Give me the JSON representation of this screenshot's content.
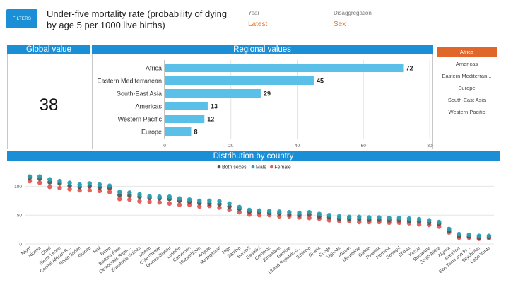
{
  "header": {
    "filters_label": "FILTERS",
    "title": "Under-five mortality rate (probability of dying by age 5 per 1000 live births)",
    "year_label": "Year",
    "year_value": "Latest",
    "disagg_label": "Disaggregation",
    "disagg_value": "Sex"
  },
  "global": {
    "heading": "Global value",
    "value": "38"
  },
  "regional": {
    "heading": "Regional values"
  },
  "region_list": {
    "items": [
      "Africa",
      "Americas",
      "Eastern Mediterran...",
      "Europe",
      "South-East Asia",
      "Western Pacific"
    ],
    "selected": "Africa"
  },
  "distribution": {
    "heading": "Distribution by country"
  },
  "colors": {
    "accent": "#1a8fd6",
    "bar": "#5bc0e8",
    "both": "#555555",
    "male": "#2a9db0",
    "female": "#e05a55",
    "selected": "#e0662a"
  },
  "chart_data": [
    {
      "type": "bar",
      "orientation": "horizontal",
      "categories": [
        "Africa",
        "Eastern Mediterranean",
        "South-East Asia",
        "Americas",
        "Western Pacific",
        "Europe"
      ],
      "values": [
        72,
        45,
        29,
        13,
        12,
        8
      ],
      "xlim": [
        0,
        80
      ],
      "xticks": [
        0,
        20,
        40,
        60,
        80
      ],
      "grid": true
    },
    {
      "type": "scatter",
      "legend": {
        "position": "top-center",
        "entries": [
          "Both sexes",
          "Male",
          "Female"
        ]
      },
      "ylim": [
        0,
        125
      ],
      "yticks": [
        0,
        50,
        100
      ],
      "grid": true,
      "categories": [
        "Niger",
        "Nigeria",
        "Chad",
        "Sierra Leone",
        "Central African R...",
        "South Sudan",
        "Guinea",
        "Mali",
        "Benin",
        "Burkina Faso",
        "Democratic Repu...",
        "Equatorial Guinea",
        "Liberia",
        "Côte d'Ivoire",
        "Guinea-Bissau",
        "Lesotho",
        "Cameroon",
        "Mozambique",
        "Angola",
        "Madagascar",
        "Togo",
        "Zambia",
        "Burundi",
        "Eswatini",
        "Comoros",
        "Zimbabwe",
        "Gambia",
        "United Republic o...",
        "Ethiopia",
        "Ghana",
        "Congo",
        "Uganda",
        "Malawi",
        "Mauritania",
        "Gabon",
        "Rwanda",
        "Namibia",
        "Senegal",
        "Eritrea",
        "Kenya",
        "Botswana",
        "South Africa",
        "Algeria",
        "Mauritius",
        "Sao Tome and Pr...",
        "Seychelles",
        "Cabo Verde"
      ],
      "series": [
        {
          "name": "Both sexes",
          "values": [
            115,
            113,
            107,
            105,
            101,
            99,
            100,
            98,
            97,
            85,
            84,
            82,
            80,
            79,
            78,
            75,
            73,
            71,
            70,
            69,
            65,
            61,
            56,
            55,
            54,
            53,
            51,
            50,
            51,
            48,
            46,
            44,
            44,
            43,
            42,
            42,
            41,
            41,
            40,
            39,
            37,
            35,
            23,
            14,
            13,
            11,
            12
          ]
        },
        {
          "name": "Male",
          "values": [
            117,
            117,
            112,
            109,
            106,
            103,
            105,
            103,
            101,
            90,
            89,
            86,
            83,
            82,
            82,
            79,
            77,
            75,
            75,
            74,
            70,
            64,
            59,
            58,
            57,
            56,
            55,
            54,
            55,
            52,
            50,
            48,
            47,
            47,
            46,
            46,
            45,
            45,
            44,
            43,
            41,
            38,
            26,
            17,
            16,
            14,
            14
          ]
        },
        {
          "name": "Female",
          "values": [
            109,
            106,
            99,
            97,
            95,
            93,
            93,
            92,
            90,
            78,
            77,
            74,
            73,
            72,
            70,
            68,
            68,
            65,
            66,
            63,
            59,
            55,
            51,
            50,
            50,
            48,
            48,
            46,
            45,
            44,
            41,
            40,
            40,
            38,
            38,
            38,
            37,
            37,
            36,
            34,
            33,
            30,
            20,
            11,
            11,
            9,
            10
          ]
        }
      ]
    }
  ]
}
